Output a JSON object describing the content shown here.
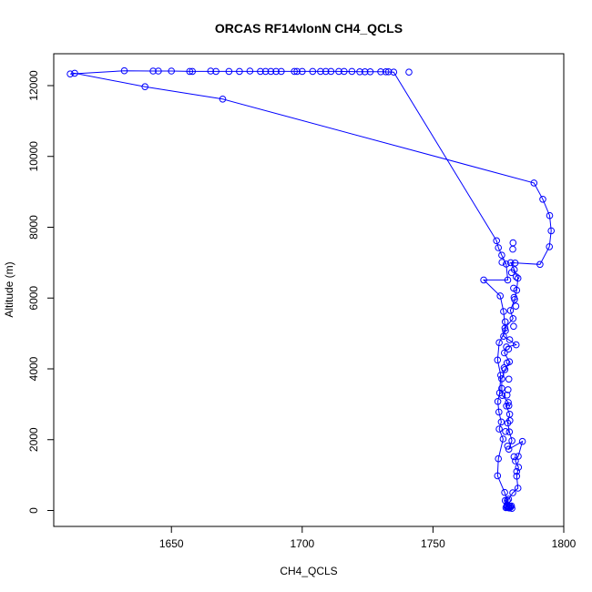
{
  "chart_data": {
    "type": "scatter",
    "title": "ORCAS RF14vlonN CH4_QCLS",
    "xlabel": "CH4_QCLS",
    "ylabel": "Altitude (m)",
    "xlim": [
      1605,
      1800
    ],
    "ylim": [
      -450,
      12900
    ],
    "xticks": [
      1650,
      1700,
      1750,
      1800
    ],
    "yticks": [
      0,
      2000,
      4000,
      6000,
      8000,
      10000,
      12000
    ],
    "grid": false,
    "legend": "none",
    "series": [
      {
        "color": "#0000ff",
        "marker": "open-circle",
        "line": true,
        "points": [
          [
            1778.8,
            80
          ],
          [
            1779.5,
            120
          ],
          [
            1778.3,
            90
          ],
          [
            1780,
            130
          ],
          [
            1778.9,
            100
          ],
          [
            1780.2,
            60
          ],
          [
            1778.4,
            120
          ],
          [
            1779.6,
            90
          ],
          [
            1778.2,
            140
          ],
          [
            1779.2,
            70
          ],
          [
            1777.6,
            280
          ],
          [
            1778.9,
            320
          ],
          [
            1780.5,
            500
          ],
          [
            1782.5,
            630
          ],
          [
            1782,
            970
          ],
          [
            1782.7,
            1220
          ],
          [
            1781.5,
            1400
          ],
          [
            1782.6,
            1530
          ],
          [
            1784.2,
            1950
          ],
          [
            1779,
            1730
          ],
          [
            1780.2,
            1970
          ],
          [
            1779.2,
            2220
          ],
          [
            1778.6,
            2470
          ],
          [
            1779.3,
            2720
          ],
          [
            1778.1,
            2950
          ],
          [
            1778.8,
            3050
          ],
          [
            1776.5,
            3250
          ],
          [
            1776.3,
            3450
          ],
          [
            1776.3,
            3720
          ],
          [
            1777.5,
            3980
          ],
          [
            1779.2,
            4200
          ],
          [
            1777.3,
            4450
          ],
          [
            1778.1,
            4620
          ],
          [
            1781.8,
            4680
          ],
          [
            1777,
            4920
          ],
          [
            1777.5,
            5150
          ],
          [
            1780.6,
            5420
          ],
          [
            1779.6,
            5650
          ],
          [
            1781.2,
            5960
          ],
          [
            1782,
            6220
          ],
          [
            1782.5,
            6560
          ],
          [
            1781.1,
            6800
          ],
          [
            1779.7,
            7000
          ],
          [
            1790.9,
            6950
          ],
          [
            1794.5,
            7450
          ],
          [
            1795.2,
            7900
          ],
          [
            1794.6,
            8330
          ],
          [
            1792,
            8790
          ],
          [
            1788.6,
            9250
          ],
          [
            1669.6,
            11620
          ],
          [
            1639.9,
            11970
          ],
          [
            1613,
            12350
          ],
          [
            1611.3,
            12330
          ],
          [
            1632,
            12420
          ],
          [
            1643,
            12410
          ],
          [
            1650,
            12410
          ],
          [
            1657,
            12400
          ],
          [
            1667,
            12400
          ],
          [
            1676,
            12400
          ],
          [
            1684,
            12400
          ],
          [
            1692,
            12400
          ],
          [
            1700,
            12400
          ],
          [
            1707,
            12400
          ],
          [
            1714,
            12400
          ],
          [
            1722,
            12390
          ],
          [
            1730,
            12390
          ],
          [
            1735,
            12380
          ],
          [
            1774.3,
            7620
          ],
          [
            1775,
            7420
          ],
          [
            1776.3,
            7210
          ],
          [
            1778,
            6960
          ],
          [
            1778.6,
            6510
          ],
          [
            1769.4,
            6510
          ],
          [
            1775.7,
            6060
          ],
          [
            1777,
            5620
          ],
          [
            1777.7,
            5080
          ],
          [
            1775.3,
            4740
          ],
          [
            1774.7,
            4250
          ],
          [
            1775.9,
            3820
          ],
          [
            1775.5,
            3320
          ],
          [
            1774.8,
            3080
          ],
          [
            1775.2,
            2780
          ],
          [
            1776.1,
            2500
          ],
          [
            1775.3,
            2300
          ],
          [
            1776.8,
            2020
          ],
          [
            1775,
            1460
          ],
          [
            1774.7,
            980
          ],
          [
            1777.4,
            510
          ],
          [
            1778.4,
            280
          ],
          [
            1777.9,
            80
          ]
        ],
        "extra_points": [
          [
            1665,
            12410
          ],
          [
            1672,
            12400
          ],
          [
            1680,
            12410
          ],
          [
            1686,
            12400
          ],
          [
            1688,
            12400
          ],
          [
            1690,
            12400
          ],
          [
            1697,
            12400
          ],
          [
            1698,
            12400
          ],
          [
            1704,
            12400
          ],
          [
            1709,
            12400
          ],
          [
            1711,
            12400
          ],
          [
            1716,
            12400
          ],
          [
            1719,
            12400
          ],
          [
            1724,
            12390
          ],
          [
            1726,
            12390
          ],
          [
            1732,
            12390
          ],
          [
            1733,
            12390
          ],
          [
            1645,
            12410
          ],
          [
            1658,
            12400
          ],
          [
            1740.8,
            12380
          ],
          [
            1780.6,
            7560
          ],
          [
            1780.5,
            7380
          ],
          [
            1780,
            6720
          ],
          [
            1781.8,
            6600
          ],
          [
            1781,
            6020
          ],
          [
            1781.7,
            5770
          ],
          [
            1780.8,
            5200
          ],
          [
            1779.3,
            4820
          ],
          [
            1778.3,
            4170
          ],
          [
            1779,
            3710
          ],
          [
            1778.7,
            3410
          ],
          [
            1778.3,
            3260
          ],
          [
            1779,
            2960
          ],
          [
            1777.7,
            2230
          ],
          [
            1782,
            1100
          ],
          [
            1781,
            1520
          ],
          [
            1778.5,
            1820
          ],
          [
            1779.4,
            2540
          ],
          [
            1777.2,
            4030
          ],
          [
            1778.9,
            4560
          ],
          [
            1777.6,
            5330
          ],
          [
            1780.8,
            6280
          ],
          [
            1781.4,
            6990
          ],
          [
            1776.4,
            7010
          ]
        ]
      }
    ]
  }
}
